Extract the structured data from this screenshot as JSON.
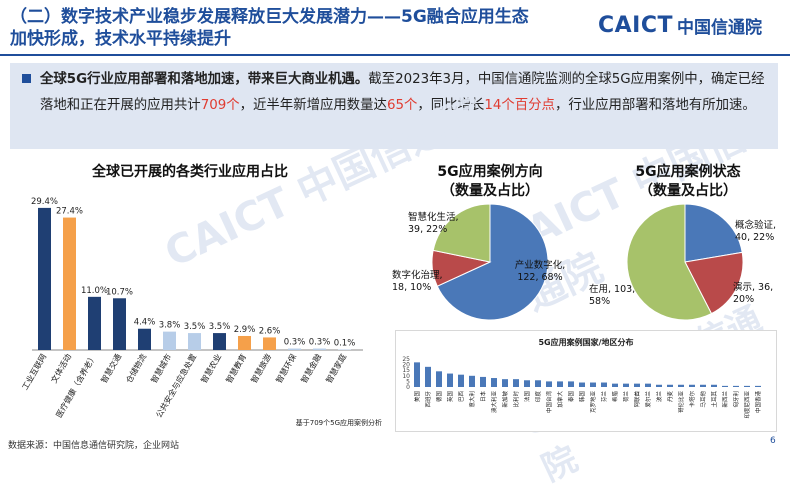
{
  "header": {
    "title_line1": "（二）数字技术产业稳步发展释放巨大发展潜力——5G融合应用生态",
    "title_line2": "加快形成，技术水平持续提升",
    "logo_en": "CAICT",
    "logo_cn": "中国信通院"
  },
  "summary": {
    "part1": "全球5G行业应用部署和落地加速，带来巨大商业机遇。",
    "part2": "截至2023年3月，中国信通院监测的全球5G应用案例中，确定已经落地和正在开展的应用共计",
    "hl1": "709个",
    "part3": "，近半年新增应用数量达",
    "hl2": "65个",
    "part4": "，同比增长",
    "hl3": "14个百分点",
    "part5": "，行业应用部署和落地有所加速。"
  },
  "watermark": "CAICT 中国信通院",
  "colors": {
    "blue": "#1f3f73",
    "orange": "#f5a04a",
    "light": "#b7cde8",
    "pieBlue": "#4a78b8",
    "pieRed": "#b94a4a",
    "pieGreen": "#a7c26a"
  },
  "chart_data": [
    {
      "type": "bar",
      "title": "全球已开展的各类行业应用占比",
      "categories": [
        "工业互联网",
        "文体活动",
        "医疗健康（含养老）",
        "智慧交通",
        "仓储物流",
        "智慧城市",
        "公共安全与应急处置",
        "智慧农业",
        "智慧教育",
        "智慧旅游",
        "智慧环保",
        "智慧金融",
        "智慧家庭"
      ],
      "values": [
        29.4,
        27.4,
        11.0,
        10.7,
        4.4,
        3.8,
        3.5,
        3.5,
        2.9,
        2.6,
        0.3,
        0.3,
        0.1
      ],
      "labels": [
        "29.4%",
        "27.4%",
        "11.0%",
        "10.7%",
        "4.4%",
        "3.8%",
        "3.5%",
        "3.5%",
        "2.9%",
        "2.6%",
        "0.3%",
        "0.3%",
        "0.1%"
      ],
      "bar_colors": [
        "#1f3f73",
        "#f5a04a",
        "#1f3f73",
        "#1f3f73",
        "#1f3f73",
        "#b7cde8",
        "#b7cde8",
        "#1f3f73",
        "#f5a04a",
        "#f5a04a",
        "#b7cde8",
        "#b7cde8",
        "#b7cde8"
      ],
      "note": "基于709个5G应用案例分析",
      "ylim": [
        0,
        30
      ]
    },
    {
      "type": "pie",
      "title_line1": "5G应用案例方向",
      "title_line2": "（数量及占比）",
      "slices": [
        {
          "name": "产业数字化",
          "value": 122,
          "pct": 68,
          "label_name": "产业数字化,",
          "label_val": "122, 68%",
          "color": "#4a78b8"
        },
        {
          "name": "数字化治理",
          "value": 18,
          "pct": 10,
          "label_name": "数字化治理,",
          "label_val": "18, 10%",
          "color": "#b94a4a"
        },
        {
          "name": "智慧化生活",
          "value": 39,
          "pct": 22,
          "label_name": "智慧化生活,",
          "label_val": "39, 22%",
          "color": "#a7c26a"
        }
      ]
    },
    {
      "type": "pie",
      "title_line1": "5G应用案例状态",
      "title_line2": "（数量及占比）",
      "slices": [
        {
          "name": "概念验证",
          "value": 40,
          "pct": 22,
          "label_name": "概念验证,",
          "label_val": "40, 22%",
          "color": "#4a78b8"
        },
        {
          "name": "演示",
          "value": 36,
          "pct": 20,
          "label_name": "演示, 36,",
          "label_val": "20%",
          "color": "#b94a4a"
        },
        {
          "name": "在用",
          "value": 103,
          "pct": 58,
          "label_name": "在用, 103,",
          "label_val": "58%",
          "color": "#a7c26a"
        }
      ]
    },
    {
      "type": "bar",
      "title": "5G应用案例国家/地区分布",
      "yticks": [
        "0",
        "5",
        "10",
        "15",
        "20",
        "25"
      ],
      "ylim": [
        0,
        25
      ],
      "categories": [
        "美国",
        "西班牙",
        "德国",
        "英国",
        "巴西",
        "意大利",
        "日本",
        "澳大利亚",
        "新加坡",
        "比利时",
        "法国",
        "印度",
        "中国台湾",
        "加拿大",
        "泰国",
        "韩国",
        "克罗地亚",
        "芬兰",
        "希腊",
        "荷兰",
        "阿联酋",
        "爱尔兰",
        "波兰",
        "丹麦",
        "哥伦比亚",
        "卡塔尔",
        "马耳他",
        "土耳其",
        "新西兰",
        "匈牙利",
        "印度尼西亚",
        "中国香港"
      ],
      "values": [
        22,
        18,
        14,
        12,
        11,
        10,
        9,
        8,
        7,
        7,
        6,
        6,
        5,
        5,
        5,
        4,
        4,
        4,
        3,
        3,
        3,
        3,
        2,
        2,
        2,
        2,
        2,
        2,
        1,
        1,
        1,
        1
      ]
    }
  ],
  "footer": "数据来源：中国信息通信研究院，企业网站",
  "page_number": "6"
}
